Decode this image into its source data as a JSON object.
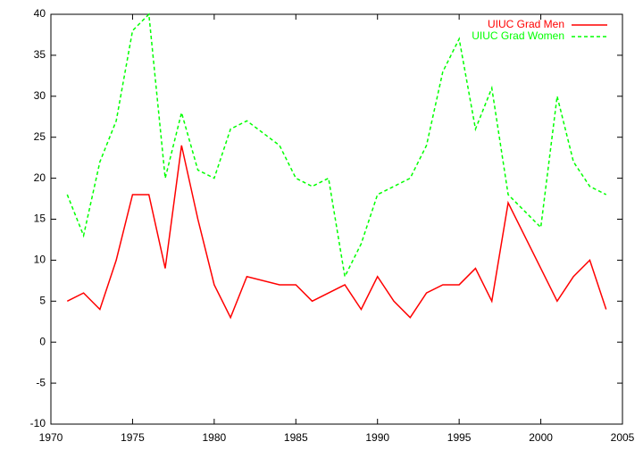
{
  "chart_data": {
    "type": "line",
    "xlim": [
      1970,
      2005
    ],
    "xticks": [
      1970,
      1975,
      1980,
      1985,
      1990,
      1995,
      2000,
      2005
    ],
    "ylim": [
      -10,
      40
    ],
    "yticks": [
      -10,
      -5,
      0,
      5,
      10,
      15,
      20,
      25,
      30,
      35,
      40
    ],
    "legend": "top-right",
    "series": [
      {
        "name": "UIUC Grad Men",
        "color": "#ff0000",
        "dash": "solid",
        "x": [
          1971,
          1972,
          1973,
          1974,
          1975,
          1976,
          1977,
          1978,
          1979,
          1980,
          1981,
          1982,
          1984,
          1985,
          1986,
          1988,
          1989,
          1990,
          1991,
          1992,
          1993,
          1994,
          1995,
          1996,
          1997,
          1998,
          2001,
          2002,
          2003,
          2004
        ],
        "values": [
          5,
          6,
          4,
          10,
          18,
          18,
          9,
          24,
          15,
          7,
          3,
          8,
          7,
          7,
          5,
          7,
          4,
          8,
          5,
          3,
          6,
          7,
          7,
          9,
          5,
          17,
          5,
          8,
          10,
          4
        ]
      },
      {
        "name": "UIUC Grad Women",
        "color": "#00ff00",
        "dash": "dashed",
        "x": [
          1971,
          1972,
          1973,
          1974,
          1975,
          1976,
          1977,
          1978,
          1979,
          1980,
          1981,
          1982,
          1984,
          1985,
          1986,
          1987,
          1988,
          1989,
          1990,
          1992,
          1993,
          1994,
          1995,
          1996,
          1997,
          1998,
          2000,
          2001,
          2002,
          2003,
          2004
        ],
        "values": [
          18,
          13,
          22,
          27,
          38,
          40,
          20,
          28,
          21,
          20,
          26,
          27,
          24,
          20,
          19,
          20,
          8,
          12,
          18,
          20,
          24,
          33,
          37,
          26,
          31,
          18,
          14,
          30,
          22,
          19,
          18
        ]
      }
    ]
  }
}
